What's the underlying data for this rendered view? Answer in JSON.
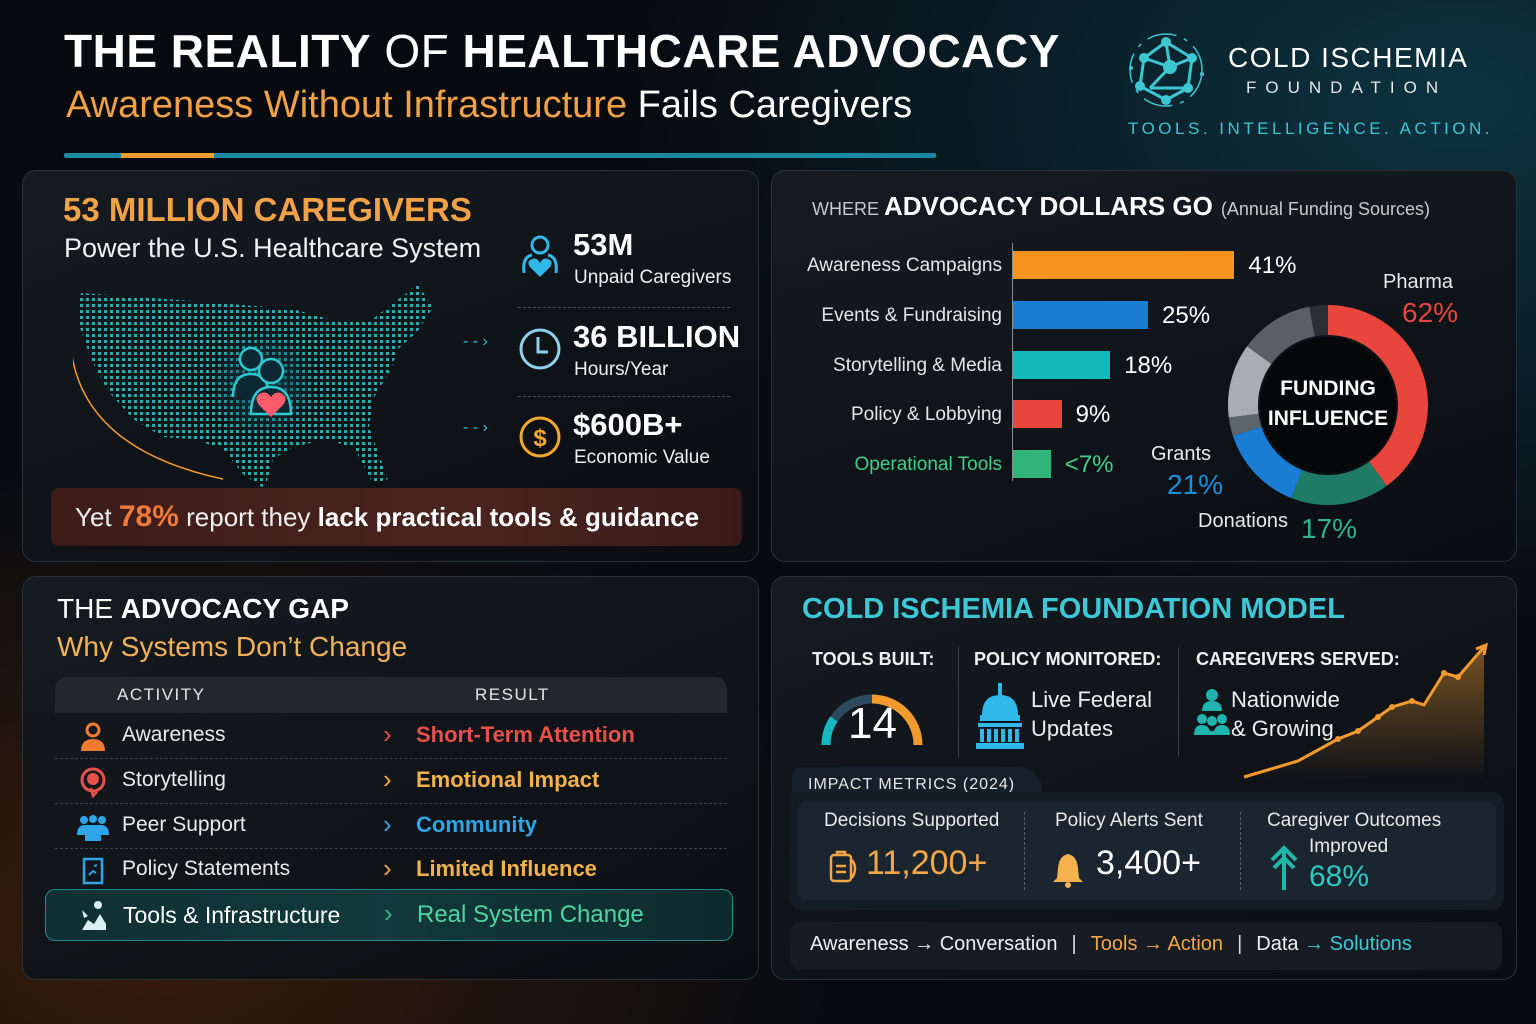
{
  "header": {
    "title_part1": "THE REALITY",
    "title_part2": " OF ",
    "title_part3": "HEALTHCARE ADVOCACY",
    "subtitle_highlight": "Awareness Without Infrastructure",
    "subtitle_rest": " Fails Caregivers"
  },
  "brand": {
    "name": "COLD ISCHEMIA",
    "subname": "FOUNDATION",
    "tagline": "TOOLS. INTELLIGENCE. ACTION.",
    "logo_icon": "network-globe-icon"
  },
  "caregivers_panel": {
    "heading": "53 MILLION CAREGIVERS",
    "subheading": "Power the U.S. Healthcare System",
    "map_icon": "us-map-dots-icon",
    "stats": [
      {
        "icon": "caregiver-heart-icon",
        "value": "53M",
        "label": "Unpaid Caregivers"
      },
      {
        "icon": "clock-icon",
        "value": "36 BILLION",
        "label": "Hours/Year"
      },
      {
        "icon": "dollar-coin-icon",
        "value": "$600B+",
        "label": "Economic Value"
      }
    ],
    "banner": {
      "prefix": "Yet ",
      "percent": "78%",
      "middle": " report they ",
      "emphasis": "lack practical tools & guidance"
    }
  },
  "dollars_panel": {
    "heading_thin": "WHERE ",
    "heading_bold": "ADVOCACY DOLLARS GO",
    "heading_note": "(Annual Funding Sources)",
    "donut_center_line1": "FUNDING",
    "donut_center_line2": "INFLUENCE"
  },
  "chart_data": [
    {
      "type": "bar",
      "orientation": "horizontal",
      "title": "WHERE ADVOCACY DOLLARS GO",
      "subtitle": "(Annual Funding Sources)",
      "categories": [
        "Awareness Campaigns",
        "Events & Fundraising",
        "Storytelling & Media",
        "Policy & Lobbying",
        "Operational Tools"
      ],
      "values": [
        41,
        25,
        18,
        9,
        7
      ],
      "value_labels": [
        "41%",
        "25%",
        "18%",
        "9%",
        "<7%"
      ],
      "colors": [
        "#f7941d",
        "#1a7fd4",
        "#14b8b8",
        "#e8453c",
        "#2fb57a"
      ],
      "xlabel": "",
      "ylabel": "",
      "grid": false
    },
    {
      "type": "pie",
      "variant": "donut",
      "title": "FUNDING INFLUENCE",
      "categories": [
        "Pharma",
        "Donations",
        "Grants"
      ],
      "values": [
        62,
        17,
        21
      ],
      "value_labels": [
        "62%",
        "17%",
        "21%"
      ],
      "colors": [
        "#e8453c",
        "#1f7a66",
        "#1a7fd4"
      ],
      "legend_position": "outside-labels"
    }
  ],
  "gap_panel": {
    "heading_thin": "THE ",
    "heading_bold": "ADVOCACY GAP",
    "subheading": "Why Systems Don’t Change",
    "columns": [
      "ACTIVITY",
      "RESULT"
    ],
    "rows": [
      {
        "icon": "person-icon",
        "activity": "Awareness",
        "result": "Short-Term Attention",
        "color": "#e8504a"
      },
      {
        "icon": "speech-bubble-icon",
        "activity": "Storytelling",
        "result": "Emotional Impact",
        "color": "#f2b14a"
      },
      {
        "icon": "group-icon",
        "activity": "Peer Support",
        "result": "Community",
        "color": "#2fa6e8"
      },
      {
        "icon": "document-icon",
        "activity": "Policy Statements",
        "result": "Limited Influence",
        "color": "#f2b14a"
      },
      {
        "icon": "tools-icon",
        "activity": "Tools & Infrastructure",
        "result": "Real System Change",
        "color": "#4fd6a0"
      }
    ]
  },
  "model_panel": {
    "heading": "COLD ISCHEMIA FOUNDATION MODEL",
    "tools_built": {
      "label": "TOOLS BUILT:",
      "value": "14"
    },
    "policy_monitored": {
      "label": "POLICY MONITORED:",
      "line1": "Live Federal",
      "line2": "Updates",
      "icon": "capitol-icon"
    },
    "caregivers_served": {
      "label": "CAREGIVERS SERVED:",
      "line1": "Nationwide",
      "line2": "& Growing",
      "icon": "people-network-icon"
    },
    "impact": {
      "tab_label": "IMPACT METRICS (2024)",
      "metrics": [
        {
          "label": "Decisions Supported",
          "value": "11,200+",
          "icon": "clipboard-icon",
          "color": "#f2a646"
        },
        {
          "label": "Policy Alerts Sent",
          "value": "3,400+",
          "icon": "bell-icon",
          "color": "#ffffff"
        },
        {
          "label": "Caregiver Outcomes",
          "sublabel": "Improved",
          "value": "68%",
          "icon": "arrow-up-icon",
          "color": "#2fc7c0"
        }
      ]
    },
    "flow": {
      "a1": "Awareness",
      "a2": "Conversation",
      "b1": "Tools",
      "b2": "Action",
      "c1": "Data",
      "c2": "Solutions",
      "arrow": "→",
      "sep": "|"
    }
  }
}
